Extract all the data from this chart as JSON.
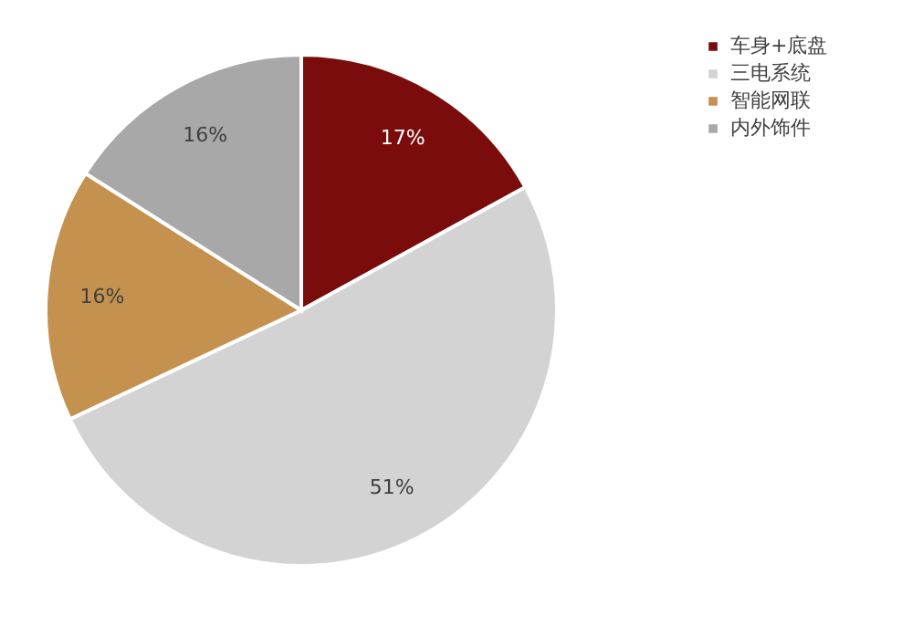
{
  "chart_data": {
    "type": "pie",
    "categories": [
      "车身+底盘",
      "三电系统",
      "智能网联",
      "内外饰件"
    ],
    "values": [
      17,
      51,
      16,
      16
    ],
    "colors": [
      "#7b0c0c",
      "#d3d3d3",
      "#c4914e",
      "#a8a8a8"
    ],
    "value_labels": [
      "17%",
      "51%",
      "16%",
      "16%"
    ],
    "legend": "right"
  }
}
